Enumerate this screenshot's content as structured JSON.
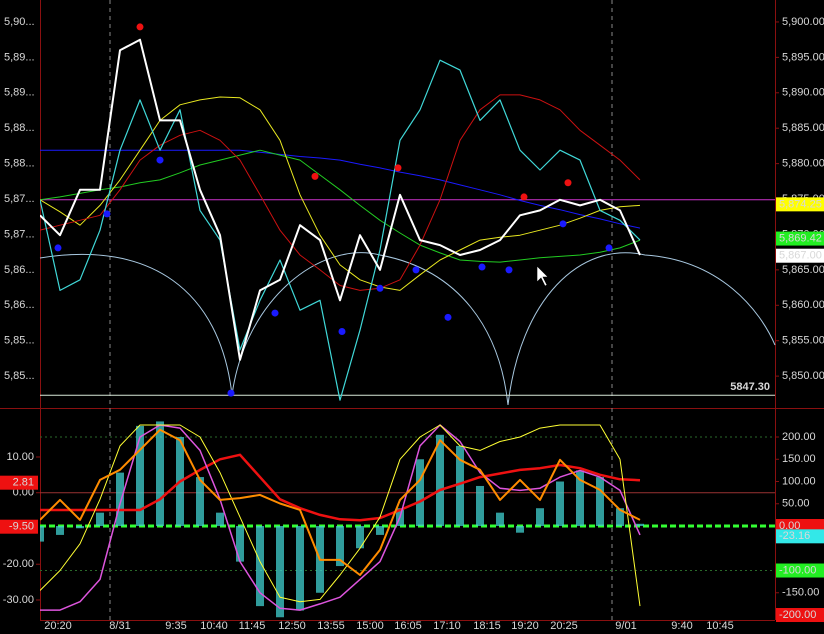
{
  "chart_data": [
    {
      "type": "line",
      "x": [
        0,
        1,
        2,
        3,
        4,
        5,
        6,
        7,
        8,
        9,
        10,
        11,
        12,
        13,
        14,
        15,
        16,
        17,
        18,
        19,
        20,
        21,
        22,
        23,
        24,
        25,
        26,
        27,
        28,
        29,
        30
      ],
      "xlim": [
        0,
        36.75
      ],
      "ylim": [
        5845.5,
        5903.1
      ],
      "yticks": [
        {
          "value": 5850,
          "label": "5,850.00"
        },
        {
          "value": 5855,
          "label": "5,855.00"
        },
        {
          "value": 5860,
          "label": "5,860.00"
        },
        {
          "value": 5865,
          "label": "5,865.00"
        },
        {
          "value": 5870,
          "label": "5,870.00"
        },
        {
          "value": 5875,
          "label": "5,875.00"
        },
        {
          "value": 5880,
          "label": "5,880.00"
        },
        {
          "value": 5885,
          "label": "5,885.00"
        },
        {
          "value": 5890,
          "label": "5,890.00"
        },
        {
          "value": 5895,
          "label": "5,895.00"
        },
        {
          "value": 5900,
          "label": "5,900.00"
        }
      ],
      "left_labels": [
        "5,85...",
        "5,85...",
        "5,86...",
        "5,86...",
        "5,87...",
        "5,87...",
        "5,88...",
        "5,88...",
        "5,89...",
        "5,89...",
        "5,90..."
      ],
      "series": [
        {
          "color": "#1a1aff",
          "width": 1,
          "values": [
            5881.9,
            5881.9,
            5881.9,
            5881.9,
            5881.9,
            5881.9,
            5881.9,
            5881.9,
            5881.9,
            5881.9,
            5881.9,
            5881.6,
            5881.3,
            5881.0,
            5880.8,
            5880.5,
            5879.9,
            5879.4,
            5878.8,
            5878.3,
            5877.7,
            5877.0,
            5876.3,
            5875.6,
            5874.8,
            5874.1,
            5873.5,
            5872.8,
            5872.2,
            5871.5,
            5870.9
          ]
        },
        {
          "color": "#22cc22",
          "width": 1,
          "values": [
            5874.9,
            5875.3,
            5875.8,
            5876.3,
            5876.7,
            5877.3,
            5877.7,
            5878.7,
            5879.8,
            5880.5,
            5881.2,
            5881.9,
            5881.2,
            5880.5,
            5878.4,
            5876.3,
            5874.1,
            5872.0,
            5870.2,
            5868.5,
            5867.4,
            5866.4,
            5866.2,
            5866.1,
            5866.4,
            5866.7,
            5866.9,
            5867.1,
            5867.5,
            5868.1,
            5869.2
          ]
        },
        {
          "color": "#e8e820",
          "width": 1,
          "values": [
            5874.9,
            5873.2,
            5871.3,
            5874.1,
            5877.7,
            5881.9,
            5886.1,
            5888.3,
            5889.0,
            5889.4,
            5889.3,
            5887.6,
            5883.3,
            5875.6,
            5869.9,
            5865.7,
            5863.6,
            5862.6,
            5862.1,
            5864.3,
            5866.4,
            5867.8,
            5869.2,
            5869.6,
            5869.9,
            5870.6,
            5871.3,
            5872.3,
            5873.4,
            5873.9,
            5874.1
          ]
        },
        {
          "color": "#cc1111",
          "width": 1,
          "values": [
            5870.6,
            5871.3,
            5872.0,
            5872.7,
            5876.3,
            5880.5,
            5882.6,
            5884.0,
            5884.7,
            5883.3,
            5880.5,
            5875.6,
            5870.6,
            5867.1,
            5865.0,
            5862.8,
            5862.1,
            5862.4,
            5863.6,
            5868.5,
            5874.9,
            5883.3,
            5887.6,
            5889.7,
            5889.7,
            5889.0,
            5887.6,
            5884.7,
            5882.6,
            5880.5,
            5877.7
          ]
        },
        {
          "color": "#40d8d8",
          "width": 1.2,
          "values": [
            5874.9,
            5862.1,
            5863.6,
            5870.6,
            5881.9,
            5889.0,
            5881.9,
            5887.6,
            5873.4,
            5869.2,
            5853.7,
            5860.7,
            5866.4,
            5859.3,
            5860.7,
            5846.6,
            5856.5,
            5867.8,
            5883.3,
            5887.6,
            5894.6,
            5893.2,
            5886.1,
            5889.0,
            5881.9,
            5879.1,
            5881.9,
            5880.5,
            5873.4,
            5872.0,
            5869.2
          ]
        },
        {
          "color": "#ffffff",
          "width": 2,
          "values": [
            5872.7,
            5869.9,
            5876.3,
            5876.3,
            5896.0,
            5897.5,
            5886.1,
            5886.1,
            5876.3,
            5869.9,
            5852.3,
            5862.1,
            5863.6,
            5871.3,
            5869.2,
            5860.7,
            5869.9,
            5865.0,
            5875.6,
            5869.2,
            5868.5,
            5867.1,
            5867.8,
            5869.2,
            5872.7,
            5873.4,
            5874.9,
            5874.1,
            5874.9,
            5873.4,
            5867.1
          ]
        }
      ],
      "dots": [
        {
          "color": "#ee1111",
          "x": [
            5,
            13.75,
            17.9,
            24.2,
            26.4
          ],
          "values": [
            5899.3,
            5878.2,
            5879.4,
            5875.3,
            5877.3
          ]
        },
        {
          "color": "#1a1aff",
          "x": [
            0.9,
            3.35,
            6,
            9.55,
            11.75,
            15.1,
            17,
            18.8,
            20.4,
            22.1,
            23.45,
            26.15,
            28.45
          ],
          "values": [
            5868.1,
            5872.9,
            5880.5,
            5847.6,
            5858.9,
            5856.3,
            5862.4,
            5865.0,
            5858.3,
            5865.4,
            5865.0,
            5871.5,
            5868.1
          ]
        }
      ],
      "hlines": [
        {
          "value": 5874.9,
          "color": "#cc33cc"
        },
        {
          "value": 5847.3,
          "color": "#d8e8d8",
          "label": "5847.30"
        }
      ],
      "price_labels": [
        {
          "value": 5874.25,
          "label": "5,874.25",
          "color": "#ffff00"
        },
        {
          "value": 5869.42,
          "label": "5,869.42",
          "color": "#22ee22"
        },
        {
          "value": 5867.0,
          "label": "5,867.00",
          "color": "#ffffff"
        }
      ]
    },
    {
      "type": "line",
      "x": [
        0,
        1,
        2,
        3,
        4,
        5,
        6,
        7,
        8,
        9,
        10,
        11,
        12,
        13,
        14,
        15,
        16,
        17,
        18,
        19,
        20,
        21,
        22,
        23,
        24,
        25,
        26,
        27,
        28,
        29,
        30
      ],
      "xlim": [
        0,
        36.75
      ],
      "xticks": [
        {
          "value": 0.9,
          "label": "20:20"
        },
        {
          "value": 4,
          "label": "8/31"
        },
        {
          "value": 6.8,
          "label": "9:35"
        },
        {
          "value": 8.7,
          "label": "10:40"
        },
        {
          "value": 10.6,
          "label": "11:45"
        },
        {
          "value": 12.6,
          "label": "12:50"
        },
        {
          "value": 14.55,
          "label": "13:55"
        },
        {
          "value": 16.5,
          "label": "15:00"
        },
        {
          "value": 18.4,
          "label": "16:05"
        },
        {
          "value": 20.35,
          "label": "17:10"
        },
        {
          "value": 22.35,
          "label": "18:15"
        },
        {
          "value": 24.25,
          "label": "19:20"
        },
        {
          "value": 26.2,
          "label": "20:25"
        },
        {
          "value": 29.3,
          "label": "9/01"
        },
        {
          "value": 32.1,
          "label": "9:40"
        },
        {
          "value": 34,
          "label": "10:45"
        }
      ],
      "date_lines": [
        3.5,
        28.6
      ],
      "ylim": [
        -211.2,
        265.2
      ],
      "yticks": [
        {
          "value": 200,
          "label": "200.00"
        },
        {
          "value": 150,
          "label": "150.00"
        },
        {
          "value": 100,
          "label": "100.00"
        },
        {
          "value": 50,
          "label": "50.00"
        },
        {
          "value": -150,
          "label": "-150.00"
        }
      ],
      "y2lim": [
        -35.6,
        23.7
      ],
      "y2ticks": [
        {
          "value": 10,
          "label": "10.00"
        },
        {
          "value": 0,
          "label": "0.00"
        },
        {
          "value": -20,
          "label": "-20.00"
        },
        {
          "value": -30,
          "label": "-30.00"
        }
      ],
      "label_boxes": [
        {
          "value": 0,
          "label": "0.00",
          "color": "#ee1111"
        },
        {
          "value": -23.16,
          "label": "-23.16",
          "color": "#33e8e8"
        },
        {
          "value": -100,
          "label": "-100.00",
          "color": "#22ee22"
        },
        {
          "value": -200,
          "label": "-200.00",
          "color": "#ee1111"
        },
        {
          "value": 2.81,
          "label": "2.81",
          "color": "#ee1111",
          "axis": "y2"
        },
        {
          "value": -9.5,
          "label": "-9.50",
          "color": "#ee1111",
          "axis": "y2"
        }
      ],
      "hlines": [
        {
          "value": 200,
          "color": "#2a6a2a",
          "dash": "2,3"
        },
        {
          "value": -100,
          "color": "#2a6a2a",
          "dash": "2,3"
        },
        {
          "value": 0,
          "color": "#33ff33",
          "dash": "6,3",
          "width": 3
        },
        {
          "value": 0,
          "color": "#993333",
          "axis": "y2"
        }
      ],
      "series": [
        {
          "type": "histogram",
          "color": "#40d0d0",
          "values": [
            -35,
            -20,
            -5,
            30,
            120,
            225,
            235,
            200,
            110,
            30,
            -80,
            -180,
            -205,
            -190,
            -150,
            -90,
            -50,
            -20,
            40,
            150,
            205,
            180,
            90,
            30,
            -15,
            40,
            100,
            125,
            110,
            40,
            5
          ]
        },
        {
          "color": "#ee1111",
          "width": 2.5,
          "values": [
            36,
            36,
            36,
            36,
            36,
            36,
            60,
            100,
            126,
            150,
            160,
            110,
            60,
            40,
            25,
            15,
            13,
            18,
            36,
            55,
            81,
            95,
            110,
            118,
            126,
            130,
            137,
            130,
            115,
            105,
            103
          ]
        },
        {
          "color": "#dd55dd",
          "width": 1.5,
          "values": [
            -189,
            -189,
            -170,
            -120,
            50,
            200,
            227,
            220,
            170,
            60,
            -80,
            -150,
            -185,
            -189,
            -175,
            -160,
            -120,
            -80,
            20,
            180,
            227,
            190,
            120,
            85,
            80,
            85,
            110,
            125,
            110,
            80,
            -20
          ]
        },
        {
          "color": "#ffff33",
          "width": 1,
          "values": [
            -145,
            -100,
            -40,
            60,
            180,
            227,
            227,
            227,
            200,
            120,
            20,
            -80,
            -160,
            -170,
            -165,
            -110,
            -50,
            20,
            150,
            200,
            227,
            180,
            170,
            190,
            200,
            220,
            227,
            227,
            227,
            150,
            -180
          ]
        },
        {
          "color": "#ff8c00",
          "width": 2,
          "axis": "y2",
          "values": [
            -7.6,
            -2.0,
            -7.6,
            3.6,
            6.4,
            12,
            17.6,
            14.7,
            3.6,
            -2.0,
            -1.5,
            -0.6,
            -3,
            -4.8,
            -18.8,
            -18.8,
            -23,
            -16,
            -2.0,
            3.6,
            14.7,
            9.2,
            6.4,
            -2.0,
            3.6,
            -2.0,
            9.2,
            3.6,
            0.8,
            -4.8,
            -7.6
          ]
        }
      ]
    }
  ]
}
